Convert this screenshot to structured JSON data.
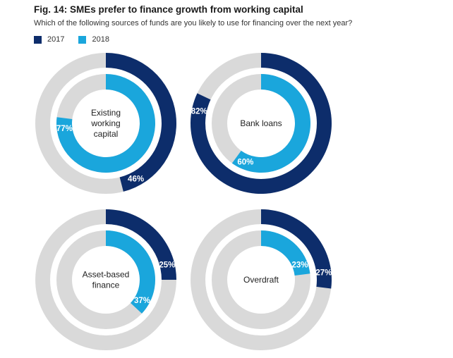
{
  "title": "Fig. 14: SMEs prefer to finance growth from working capital",
  "subtitle": "Which of the following sources of funds are you likely to use for financing over the next year?",
  "legend": [
    {
      "label": "2017",
      "color": "#0d2d6b"
    },
    {
      "label": "2018",
      "color": "#1aa6dc"
    }
  ],
  "colors": {
    "track": "#d9d9d9",
    "y2017": "#0d2d6b",
    "y2018": "#1aa6dc"
  },
  "chart_data": {
    "type": "pie",
    "categories": [
      "Existing working capital",
      "Bank loans",
      "Asset-based finance",
      "Overdraft"
    ],
    "series": [
      {
        "name": "2017",
        "values": [
          46,
          82,
          25,
          27
        ]
      },
      {
        "name": "2018",
        "values": [
          77,
          60,
          37,
          23
        ]
      }
    ],
    "units": "%",
    "panels": [
      {
        "label": "Existing\nworking\ncapital",
        "v2017": 46,
        "v2018": 77,
        "t2017": "46%",
        "t2018": "77%"
      },
      {
        "label": "Bank loans",
        "v2017": 82,
        "v2018": 60,
        "t2017": "82%",
        "t2018": "60%"
      },
      {
        "label": "Asset-based\nfinance",
        "v2017": 25,
        "v2018": 37,
        "t2017": "25%",
        "t2018": "37%"
      },
      {
        "label": "Overdraft",
        "v2017": 27,
        "v2018": 23,
        "t2017": "27%",
        "t2018": "23%"
      }
    ]
  }
}
